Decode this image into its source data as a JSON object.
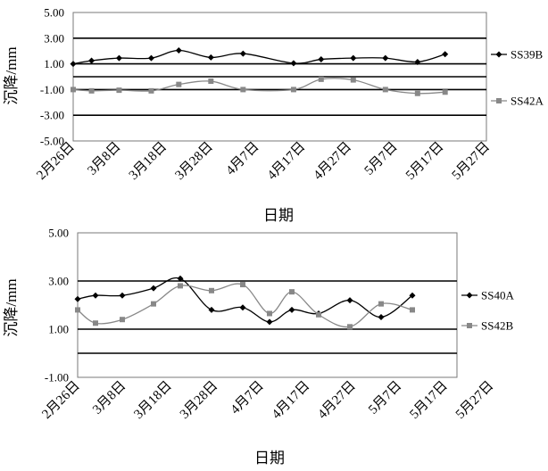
{
  "x_tick_labels": [
    "2月26日",
    "3月8日",
    "3月18日",
    "3月28日",
    "4月7日",
    "4月17日",
    "4月27日",
    "5月7日",
    "5月17日",
    "5月27日"
  ],
  "chart_data": [
    {
      "type": "line",
      "xlabel": "日期",
      "ylabel": "沉降/mm",
      "ylim": [
        -5,
        5
      ],
      "yticks": [
        "5.00",
        "3.00",
        "1.00",
        "-1.00",
        "-3.00",
        "-5.00"
      ],
      "grid": "horizontal lines at 3, 1, 0, -1, -3",
      "legend": "right",
      "series": [
        {
          "name": "SS39B",
          "color": "#000000",
          "marker": "diamond",
          "points": [
            {
              "x": "2月26日",
              "y": 1.0
            },
            {
              "x": "3月2日",
              "y": 1.25
            },
            {
              "x": "3月8日",
              "y": 1.45
            },
            {
              "x": "3月15日",
              "y": 1.45
            },
            {
              "x": "3月21日",
              "y": 2.05
            },
            {
              "x": "3月28日",
              "y": 1.5
            },
            {
              "x": "4月4日",
              "y": 1.8
            },
            {
              "x": "4月15日",
              "y": 1.05
            },
            {
              "x": "4月21日",
              "y": 1.35
            },
            {
              "x": "4月28日",
              "y": 1.45
            },
            {
              "x": "5月5日",
              "y": 1.45
            },
            {
              "x": "5月12日",
              "y": 1.15
            },
            {
              "x": "5月18日",
              "y": 1.75
            }
          ]
        },
        {
          "name": "SS42A",
          "color": "#888888",
          "marker": "square",
          "points": [
            {
              "x": "2月26日",
              "y": -1.0
            },
            {
              "x": "3月2日",
              "y": -1.1
            },
            {
              "x": "3月8日",
              "y": -1.05
            },
            {
              "x": "3月15日",
              "y": -1.1
            },
            {
              "x": "3月21日",
              "y": -0.6
            },
            {
              "x": "3月28日",
              "y": -0.35
            },
            {
              "x": "4月4日",
              "y": -1.0
            },
            {
              "x": "4月15日",
              "y": -1.0
            },
            {
              "x": "4月21日",
              "y": -0.2
            },
            {
              "x": "4月28日",
              "y": -0.25
            },
            {
              "x": "5月5日",
              "y": -1.0
            },
            {
              "x": "5月12日",
              "y": -1.3
            },
            {
              "x": "5月18日",
              "y": -1.2
            }
          ]
        }
      ]
    },
    {
      "type": "line",
      "xlabel": "日期",
      "ylabel": "沉降/mm",
      "ylim": [
        -1,
        5
      ],
      "yticks": [
        "5.00",
        "3.00",
        "1.00",
        "-1.00"
      ],
      "grid": "horizontal lines at 3, 1, 0",
      "legend": "right",
      "series": [
        {
          "name": "SS40A",
          "color": "#000000",
          "marker": "diamond",
          "points": [
            {
              "x": "2月26日",
              "y": 2.25
            },
            {
              "x": "3月2日",
              "y": 2.4
            },
            {
              "x": "3月8日",
              "y": 2.4
            },
            {
              "x": "3月15日",
              "y": 2.7
            },
            {
              "x": "3月21日",
              "y": 3.1
            },
            {
              "x": "3月28日",
              "y": 1.8
            },
            {
              "x": "4月4日",
              "y": 1.9
            },
            {
              "x": "4月10日",
              "y": 1.3
            },
            {
              "x": "4月15日",
              "y": 1.8
            },
            {
              "x": "4月21日",
              "y": 1.65
            },
            {
              "x": "4月28日",
              "y": 2.2
            },
            {
              "x": "5月5日",
              "y": 1.5
            },
            {
              "x": "5月12日",
              "y": 2.4
            }
          ]
        },
        {
          "name": "SS42B",
          "color": "#888888",
          "marker": "square",
          "points": [
            {
              "x": "2月26日",
              "y": 1.8
            },
            {
              "x": "3月2日",
              "y": 1.25
            },
            {
              "x": "3月8日",
              "y": 1.4
            },
            {
              "x": "3月15日",
              "y": 2.05
            },
            {
              "x": "3月21日",
              "y": 2.8
            },
            {
              "x": "3月28日",
              "y": 2.6
            },
            {
              "x": "4月4日",
              "y": 2.85
            },
            {
              "x": "4月10日",
              "y": 1.65
            },
            {
              "x": "4月15日",
              "y": 2.55
            },
            {
              "x": "4月21日",
              "y": 1.6
            },
            {
              "x": "4月28日",
              "y": 1.1
            },
            {
              "x": "5月5日",
              "y": 2.05
            },
            {
              "x": "5月12日",
              "y": 1.8
            }
          ]
        }
      ]
    }
  ]
}
